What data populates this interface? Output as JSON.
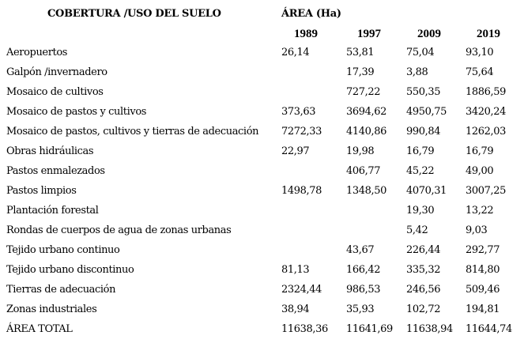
{
  "table": {
    "header": {
      "category_label": "COBERTURA /USO DEL SUELO",
      "area_label": "ÁREA (Ha)",
      "years": [
        "1989",
        "1997",
        "2009",
        "2019"
      ]
    },
    "rows": [
      {
        "label": "Aeropuertos",
        "values": [
          "26,14",
          "53,81",
          "75,04",
          "93,10"
        ]
      },
      {
        "label": "Galpón /invernadero",
        "values": [
          "",
          "17,39",
          "3,88",
          "75,64"
        ]
      },
      {
        "label": "Mosaico de cultivos",
        "values": [
          "",
          "727,22",
          "550,35",
          "1886,59"
        ]
      },
      {
        "label": "Mosaico de pastos y cultivos",
        "values": [
          "373,63",
          "3694,62",
          "4950,75",
          "3420,24"
        ]
      },
      {
        "label": "Mosaico de pastos, cultivos y tierras de adecuación",
        "values": [
          "7272,33",
          "4140,86",
          "990,84",
          "1262,03"
        ]
      },
      {
        "label": "Obras hidráulicas",
        "values": [
          "22,97",
          "19,98",
          "16,79",
          "16,79"
        ]
      },
      {
        "label": "Pastos enmalezados",
        "values": [
          "",
          "406,77",
          "45,22",
          "49,00"
        ]
      },
      {
        "label": "Pastos limpios",
        "values": [
          "1498,78",
          "1348,50",
          "4070,31",
          "3007,25"
        ]
      },
      {
        "label": "Plantación forestal",
        "values": [
          "",
          "",
          "19,30",
          "13,22"
        ]
      },
      {
        "label": "Rondas de cuerpos de agua de zonas urbanas",
        "values": [
          "",
          "",
          "5,42",
          "9,03"
        ]
      },
      {
        "label": "Tejido urbano continuo",
        "values": [
          "",
          "43,67",
          "226,44",
          "292,77"
        ]
      },
      {
        "label": "Tejido urbano discontinuo",
        "values": [
          "81,13",
          "166,42",
          "335,32",
          "814,80"
        ]
      },
      {
        "label": "Tierras de adecuación",
        "values": [
          "2324,44",
          "986,53",
          "246,56",
          "509,46"
        ]
      },
      {
        "label": "Zonas industriales",
        "values": [
          "38,94",
          "35,93",
          "102,72",
          "194,81"
        ]
      },
      {
        "label": "ÁREA TOTAL",
        "values": [
          "11638,36",
          "11641,69",
          "11638,94",
          "11644,74"
        ]
      }
    ]
  }
}
